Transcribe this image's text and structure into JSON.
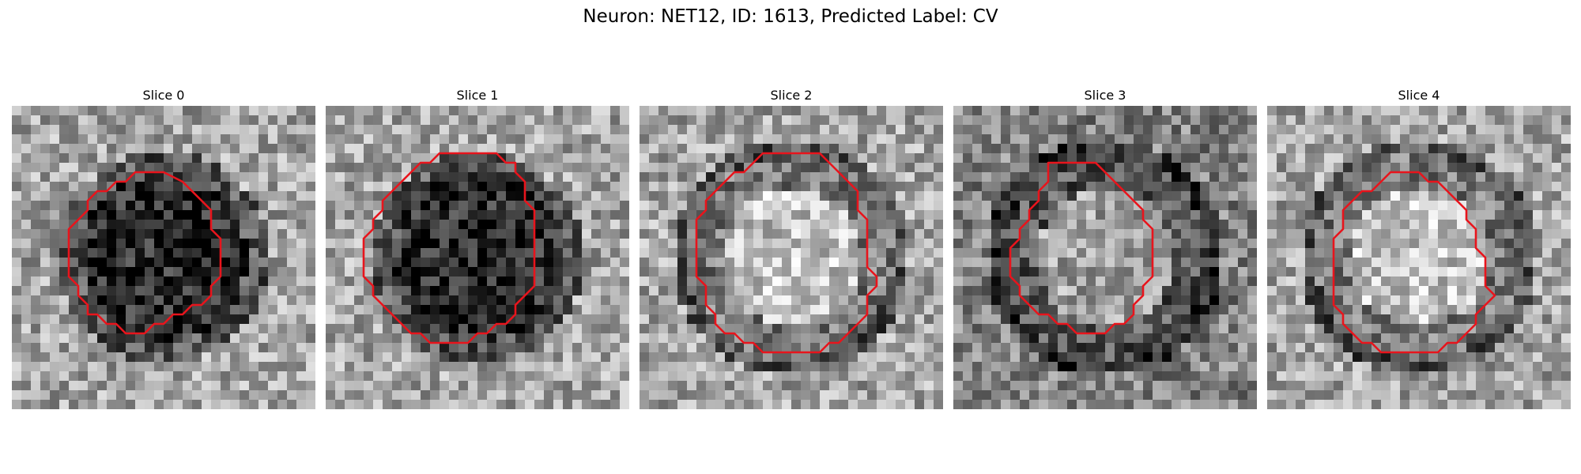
{
  "figure": {
    "suptitle": "Neuron: NET12, ID: 1613, Predicted Label: CV",
    "contour_color": "#e8141c"
  },
  "slices": [
    {
      "title": "Slice 0",
      "cell_center": "dark",
      "contour": [
        [
          13,
          7
        ],
        [
          16,
          7
        ],
        [
          18,
          8
        ],
        [
          20,
          10
        ],
        [
          21,
          11
        ],
        [
          21,
          13
        ],
        [
          22,
          14
        ],
        [
          22,
          18
        ],
        [
          21,
          19
        ],
        [
          21,
          20
        ],
        [
          20,
          21
        ],
        [
          19,
          21
        ],
        [
          18,
          22
        ],
        [
          17,
          22
        ],
        [
          16,
          23
        ],
        [
          15,
          23
        ],
        [
          14,
          24
        ],
        [
          12,
          24
        ],
        [
          11,
          23
        ],
        [
          10,
          23
        ],
        [
          9,
          22
        ],
        [
          8,
          22
        ],
        [
          8,
          21
        ],
        [
          7,
          20
        ],
        [
          7,
          19
        ],
        [
          6,
          18
        ],
        [
          6,
          13
        ],
        [
          7,
          12
        ],
        [
          8,
          11
        ],
        [
          8,
          10
        ],
        [
          9,
          9
        ],
        [
          10,
          9
        ],
        [
          11,
          8
        ],
        [
          12,
          8
        ]
      ]
    },
    {
      "title": "Slice 1",
      "cell_center": "dark",
      "contour": [
        [
          12,
          5
        ],
        [
          18,
          5
        ],
        [
          19,
          6
        ],
        [
          20,
          6
        ],
        [
          20,
          7
        ],
        [
          21,
          8
        ],
        [
          21,
          10
        ],
        [
          22,
          11
        ],
        [
          22,
          19
        ],
        [
          21,
          20
        ],
        [
          20,
          21
        ],
        [
          20,
          22
        ],
        [
          19,
          23
        ],
        [
          18,
          23
        ],
        [
          17,
          24
        ],
        [
          16,
          24
        ],
        [
          15,
          25
        ],
        [
          11,
          25
        ],
        [
          10,
          24
        ],
        [
          9,
          24
        ],
        [
          8,
          23
        ],
        [
          7,
          22
        ],
        [
          6,
          21
        ],
        [
          5,
          20
        ],
        [
          5,
          19
        ],
        [
          4,
          18
        ],
        [
          4,
          14
        ],
        [
          5,
          13
        ],
        [
          5,
          12
        ],
        [
          6,
          11
        ],
        [
          6,
          10
        ],
        [
          7,
          9
        ],
        [
          8,
          8
        ],
        [
          9,
          7
        ],
        [
          10,
          6
        ],
        [
          11,
          6
        ]
      ]
    },
    {
      "title": "Slice 2",
      "cell_center": "bright",
      "contour": [
        [
          13,
          5
        ],
        [
          19,
          5
        ],
        [
          20,
          6
        ],
        [
          21,
          7
        ],
        [
          22,
          8
        ],
        [
          23,
          9
        ],
        [
          23,
          11
        ],
        [
          24,
          12
        ],
        [
          24,
          17
        ],
        [
          25,
          18
        ],
        [
          25,
          19
        ],
        [
          24,
          20
        ],
        [
          24,
          22
        ],
        [
          23,
          23
        ],
        [
          22,
          24
        ],
        [
          21,
          25
        ],
        [
          20,
          25
        ],
        [
          19,
          26
        ],
        [
          13,
          26
        ],
        [
          12,
          25
        ],
        [
          11,
          25
        ],
        [
          10,
          24
        ],
        [
          9,
          24
        ],
        [
          8,
          23
        ],
        [
          8,
          22
        ],
        [
          7,
          21
        ],
        [
          7,
          19
        ],
        [
          6,
          18
        ],
        [
          6,
          12
        ],
        [
          7,
          11
        ],
        [
          7,
          10
        ],
        [
          8,
          9
        ],
        [
          9,
          8
        ],
        [
          10,
          7
        ],
        [
          11,
          7
        ],
        [
          12,
          6
        ]
      ]
    },
    {
      "title": "Slice 3",
      "cell_center": "bright",
      "contour": [
        [
          10,
          6
        ],
        [
          15,
          6
        ],
        [
          16,
          7
        ],
        [
          17,
          8
        ],
        [
          18,
          9
        ],
        [
          19,
          10
        ],
        [
          20,
          11
        ],
        [
          20,
          12
        ],
        [
          21,
          13
        ],
        [
          21,
          18
        ],
        [
          20,
          19
        ],
        [
          20,
          20
        ],
        [
          19,
          21
        ],
        [
          19,
          22
        ],
        [
          18,
          23
        ],
        [
          17,
          23
        ],
        [
          16,
          24
        ],
        [
          13,
          24
        ],
        [
          12,
          23
        ],
        [
          11,
          23
        ],
        [
          10,
          22
        ],
        [
          9,
          22
        ],
        [
          8,
          21
        ],
        [
          7,
          20
        ],
        [
          7,
          19
        ],
        [
          6,
          18
        ],
        [
          6,
          15
        ],
        [
          7,
          14
        ],
        [
          7,
          13
        ],
        [
          8,
          12
        ],
        [
          8,
          11
        ],
        [
          9,
          10
        ],
        [
          9,
          9
        ],
        [
          10,
          8
        ]
      ]
    },
    {
      "title": "Slice 4",
      "cell_center": "bright",
      "contour": [
        [
          13,
          7
        ],
        [
          16,
          7
        ],
        [
          17,
          8
        ],
        [
          18,
          8
        ],
        [
          19,
          9
        ],
        [
          20,
          10
        ],
        [
          21,
          11
        ],
        [
          21,
          12
        ],
        [
          22,
          13
        ],
        [
          22,
          15
        ],
        [
          23,
          16
        ],
        [
          23,
          19
        ],
        [
          24,
          20
        ],
        [
          23,
          21
        ],
        [
          22,
          22
        ],
        [
          22,
          23
        ],
        [
          21,
          24
        ],
        [
          20,
          25
        ],
        [
          19,
          25
        ],
        [
          18,
          26
        ],
        [
          12,
          26
        ],
        [
          11,
          25
        ],
        [
          10,
          25
        ],
        [
          9,
          24
        ],
        [
          8,
          23
        ],
        [
          8,
          22
        ],
        [
          7,
          21
        ],
        [
          7,
          14
        ],
        [
          8,
          13
        ],
        [
          8,
          11
        ],
        [
          9,
          10
        ],
        [
          10,
          9
        ],
        [
          11,
          9
        ],
        [
          12,
          8
        ]
      ]
    }
  ]
}
